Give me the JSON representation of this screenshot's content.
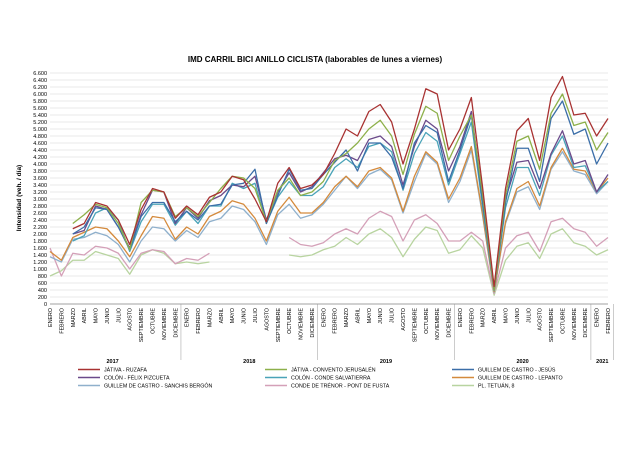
{
  "chart_data": {
    "type": "line",
    "title": "IMD CARRIL BICI ANILLO CICLISTA (laborables de lunes a viernes)",
    "xlabel": "",
    "ylabel": "Intensidad (veh. / día)",
    "ylim": [
      0,
      6600
    ],
    "yticks": [
      0,
      200,
      400,
      600,
      800,
      1000,
      1200,
      1400,
      1600,
      1800,
      2000,
      2200,
      2400,
      2600,
      2800,
      3000,
      3200,
      3400,
      3600,
      3800,
      4000,
      4200,
      4400,
      4600,
      4800,
      5000,
      5200,
      5400,
      5600,
      5800,
      6000,
      6200,
      6400,
      6600
    ],
    "grid": true,
    "legend_position": "bottom",
    "categories": [
      "ENERO",
      "FEBRERO",
      "MARZO",
      "ABRIL",
      "MAYO",
      "JUNIO",
      "JULIO",
      "AGOSTO",
      "SEPTIEMBRE",
      "OCTUBRE",
      "NOVIEMBRE",
      "DICIEMBRE",
      "ENERO",
      "FEBRERO",
      "MARZO",
      "ABRIL",
      "MAYO",
      "JUNIO",
      "JULIO",
      "AGOSTO",
      "SEPTIEMBRE",
      "OCTUBRE",
      "NOVIEMBRE",
      "DICIEMBRE",
      "ENERO",
      "FEBRERO",
      "MARZO",
      "ABRIL",
      "MAYO",
      "JUNIO",
      "JULIO",
      "AGOSTO",
      "SEPTIEMBRE",
      "OCTUBRE",
      "NOVIEMBRE",
      "DICIEMBRE",
      "ENERO",
      "FEBRERO",
      "MARZO",
      "ABRIL",
      "MAYO",
      "JUNIO",
      "JULIO",
      "AGOSTO",
      "SEPTIEMBRE",
      "OCTUBRE",
      "NOVIEMBRE",
      "DICIEMBRE",
      "ENERO",
      "FEBRERO"
    ],
    "year_groups": [
      {
        "label": "2017",
        "start": 0,
        "end": 11
      },
      {
        "label": "2018",
        "start": 12,
        "end": 23
      },
      {
        "label": "2019",
        "start": 24,
        "end": 35
      },
      {
        "label": "2020",
        "start": 36,
        "end": 47
      },
      {
        "label": "2021",
        "start": 48,
        "end": 49
      }
    ],
    "series": [
      {
        "name": "JÁTIVA - RUZAFA",
        "color": "#a83232",
        "values": [
          null,
          null,
          2150,
          2300,
          2900,
          2800,
          2400,
          1700,
          2700,
          3300,
          3200,
          2450,
          2800,
          2550,
          3050,
          3200,
          3650,
          3550,
          3000,
          2350,
          3450,
          3900,
          3300,
          3400,
          3700,
          4300,
          5000,
          4800,
          5500,
          5700,
          5200,
          4000,
          5000,
          6150,
          6000,
          4400,
          5000,
          5900,
          3300,
          500,
          3300,
          4950,
          5300,
          4100,
          5900,
          6500,
          5400,
          5450,
          4800,
          5300
        ]
      },
      {
        "name": "JÁTIVA - CONVENTO JERUSALÉN",
        "color": "#8db04a",
        "values": [
          null,
          null,
          2300,
          2550,
          2850,
          2750,
          2300,
          1550,
          2900,
          3250,
          3200,
          2500,
          2750,
          2500,
          2900,
          3300,
          3650,
          3600,
          3300,
          2350,
          3250,
          3600,
          3100,
          3200,
          3500,
          4100,
          4300,
          4600,
          5000,
          5250,
          4800,
          3700,
          4850,
          5650,
          5450,
          4100,
          4800,
          5400,
          3100,
          400,
          3100,
          4650,
          4800,
          3850,
          5450,
          6000,
          5100,
          5200,
          4400,
          4900
        ]
      },
      {
        "name": "GUILLEM DE CASTRO - JESÚS",
        "color": "#3b6ea8",
        "values": [
          null,
          null,
          2000,
          2200,
          2750,
          2700,
          2200,
          1550,
          2500,
          2900,
          2900,
          2350,
          2650,
          2400,
          2800,
          2850,
          3400,
          3450,
          3850,
          2300,
          3100,
          3850,
          3250,
          3300,
          3700,
          4050,
          4400,
          3800,
          4600,
          4600,
          4200,
          3300,
          4600,
          5100,
          4900,
          3500,
          4400,
          5400,
          2900,
          420,
          2900,
          4450,
          4450,
          3500,
          5300,
          5800,
          4850,
          5000,
          4000,
          4600
        ]
      },
      {
        "name": "COLÓN - FÉLIX PIZCUETA",
        "color": "#6b4a8a",
        "values": [
          null,
          null,
          2000,
          2100,
          2800,
          2700,
          2200,
          1600,
          2550,
          3250,
          3200,
          2300,
          2750,
          2450,
          2950,
          3100,
          3400,
          3350,
          3650,
          2400,
          3200,
          3750,
          3200,
          3350,
          3750,
          4150,
          4250,
          4100,
          4700,
          4800,
          4500,
          3400,
          4500,
          5250,
          5000,
          3800,
          4500,
          5500,
          3000,
          450,
          3000,
          4050,
          4100,
          3300,
          4300,
          4950,
          4000,
          4100,
          3200,
          3700
        ]
      },
      {
        "name": "COLÓN - CONDE SALVATIERRA",
        "color": "#4aa3b8",
        "values": [
          null,
          null,
          1800,
          1950,
          2600,
          2750,
          2400,
          1500,
          2350,
          2850,
          2850,
          2250,
          2650,
          2300,
          2800,
          2800,
          3450,
          3300,
          3450,
          2300,
          3050,
          3500,
          3100,
          3100,
          3350,
          3900,
          4150,
          3900,
          4500,
          4600,
          4350,
          3250,
          4300,
          4900,
          4650,
          3400,
          4300,
          5200,
          2750,
          380,
          2750,
          3900,
          3900,
          3100,
          4250,
          4800,
          3900,
          3950,
          3200,
          3500
        ]
      },
      {
        "name": "GUILLEM DE CASTRO - LEPANTO",
        "color": "#d48a3c",
        "values": [
          1500,
          1250,
          1900,
          2050,
          2200,
          2150,
          1800,
          1350,
          1950,
          2500,
          2450,
          1850,
          2200,
          2000,
          2500,
          2650,
          2950,
          2850,
          2450,
          1800,
          2650,
          3050,
          2600,
          2600,
          2900,
          3350,
          3650,
          3350,
          3800,
          3900,
          3600,
          2650,
          3650,
          4350,
          4050,
          3000,
          3600,
          4500,
          2550,
          350,
          2350,
          3300,
          3500,
          2800,
          3900,
          4450,
          3850,
          3800,
          3200,
          3600
        ]
      },
      {
        "name": "GUILLEM DE CASTRO - SANCHIS BERGÓN",
        "color": "#8fb0cc",
        "values": [
          1350,
          1200,
          1850,
          1900,
          2050,
          1950,
          1700,
          1200,
          1800,
          2200,
          2150,
          1800,
          2100,
          1900,
          2350,
          2450,
          2800,
          2700,
          2350,
          1700,
          2550,
          2850,
          2450,
          2550,
          2850,
          3250,
          3650,
          3300,
          3700,
          3850,
          3550,
          2600,
          3500,
          4300,
          4000,
          2900,
          3500,
          4400,
          2500,
          330,
          2300,
          3200,
          3350,
          2700,
          3850,
          4350,
          3800,
          3700,
          3150,
          3500
        ]
      },
      {
        "name": "CONDE DE TRÉNOR - PONT DE FUSTA",
        "color": "#d4a0b8",
        "values": [
          1600,
          800,
          1450,
          1400,
          1650,
          1600,
          1450,
          1000,
          1450,
          1550,
          1500,
          1150,
          1300,
          1250,
          1450,
          null,
          null,
          null,
          null,
          null,
          null,
          1900,
          1700,
          1650,
          1750,
          2000,
          2150,
          2000,
          2450,
          2650,
          2500,
          1800,
          2400,
          2550,
          2300,
          1800,
          1800,
          2050,
          1800,
          300,
          1600,
          1950,
          2050,
          1500,
          2350,
          2450,
          2150,
          2050,
          1650,
          1900
        ]
      },
      {
        "name": "PL. TETUÁN, 8",
        "color": "#b8d4a0",
        "values": [
          800,
          950,
          1250,
          1250,
          1500,
          1400,
          1300,
          850,
          1400,
          1550,
          1450,
          1150,
          1200,
          1150,
          1200,
          null,
          null,
          null,
          null,
          null,
          null,
          1400,
          1350,
          1400,
          1550,
          1650,
          1900,
          1700,
          2000,
          2150,
          1900,
          1350,
          1850,
          2200,
          2100,
          1450,
          1550,
          1950,
          1600,
          250,
          1250,
          1650,
          1750,
          1300,
          2000,
          2150,
          1750,
          1650,
          1400,
          1550
        ]
      }
    ]
  }
}
